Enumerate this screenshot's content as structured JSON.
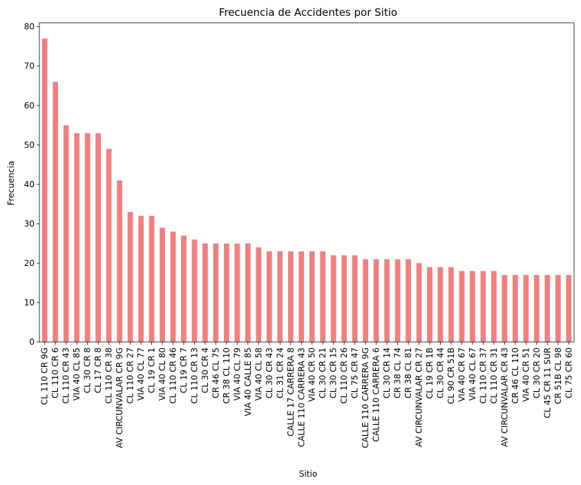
{
  "chart_data": {
    "type": "bar",
    "title": "Frecuencia de Accidentes por Sitio",
    "xlabel": "Sitio",
    "ylabel": "Frecuencia",
    "ylim": [
      0,
      81
    ],
    "yticks": [
      0,
      10,
      20,
      30,
      40,
      50,
      60,
      70,
      80
    ],
    "grid": false,
    "bar_color": "#f08080",
    "categories": [
      "CL 110 CR 9G",
      "CL 110 CR 6",
      "CL 110 CR 43",
      "VIA 40 CL 85",
      "CL 30 CR 8",
      "CL 17 CR 8",
      "CL 110 CR 38",
      "AV CIRCUNVALAR CR 9G",
      "CL 110 CR 27",
      "VIA 40 CL 77",
      "CL 19 CR 1",
      "VIA 40 CL 80",
      "CL 110 CR 46",
      "CL 19 CR 7",
      "CL 110 CR 13",
      "CL 30 CR 4",
      "CR 46 CL 75",
      "CR 38 CL 110",
      "VIA 40 CL 79",
      "VIA 40 CALLE 85",
      "VIA 40 CL 58",
      "CL 30 CR 43",
      "CL 31 CR 24",
      "CALLE 17 CARRERA 8",
      "CALLE 110 CARRERA 43",
      "VIA 40 CR 50",
      "CL 30 CR 21",
      "CL 30 CR 15",
      "CL 110 CR 26",
      "CL 75 CR 47",
      "CALLE 110 CARRERA 9G",
      "CALLE 110 CARRERA 6",
      "CL 30 CR 14",
      "CR 38 CL 74",
      "CR 38 CL 81",
      "AV CIRCUNVALAR CR 27",
      "CL 19 CR 1B",
      "CL 30 CR 44",
      "CL 90 CR 51B",
      "VIA 40 CR 67",
      "VIA 40 CL 67",
      "CL 110 CR 37",
      "CL 110 CR 31",
      "AV CIRCUNVALAR CR 43",
      "CR 46 CL 110",
      "VIA 40 CR 51",
      "CL 30 CR 20",
      "CL 45 CR 11 SUR",
      "CR 51B CL 98",
      "CL 75 CR 60"
    ],
    "values": [
      77,
      66,
      55,
      53,
      53,
      53,
      49,
      41,
      33,
      32,
      32,
      29,
      28,
      27,
      26,
      25,
      25,
      25,
      25,
      25,
      24,
      23,
      23,
      23,
      23,
      23,
      23,
      22,
      22,
      22,
      21,
      21,
      21,
      21,
      21,
      20,
      19,
      19,
      19,
      18,
      18,
      18,
      18,
      17,
      17,
      17,
      17,
      17,
      17,
      17
    ]
  }
}
